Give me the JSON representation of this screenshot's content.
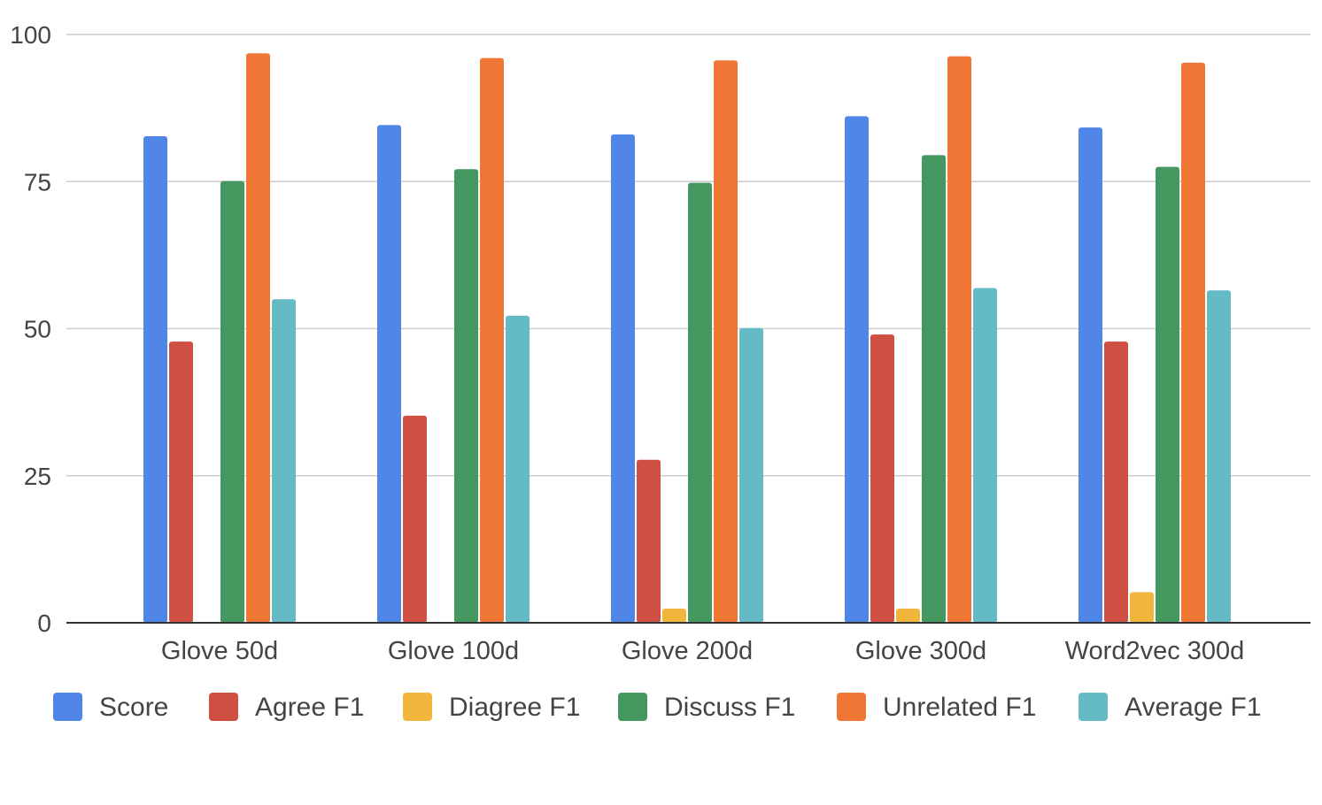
{
  "chart_data": {
    "type": "bar",
    "title": "",
    "xlabel": "",
    "ylabel": "",
    "ylim": [
      0,
      100
    ],
    "yticks": [
      0,
      25,
      50,
      75,
      100
    ],
    "yticks_labels": [
      "0",
      "25",
      "50",
      "75",
      "100"
    ],
    "grid": true,
    "legend_position": "bottom",
    "categories": [
      "Glove 50d",
      "Glove 100d",
      "Glove 200d",
      "Glove 300d",
      "Word2vec 300d"
    ],
    "series": [
      {
        "name": "Score",
        "color": "#4f86e8",
        "values": [
          82.7,
          84.6,
          83.0,
          86.1,
          84.2
        ]
      },
      {
        "name": "Agree F1",
        "color": "#cf4f42",
        "values": [
          47.8,
          35.2,
          27.7,
          49.0,
          47.8
        ]
      },
      {
        "name": "Diagree F1",
        "color": "#f0b73c",
        "values": [
          0,
          0,
          2.4,
          2.4,
          5.2
        ]
      },
      {
        "name": "Discuss F1",
        "color": "#44975f",
        "values": [
          75.1,
          77.1,
          74.8,
          79.5,
          77.5
        ]
      },
      {
        "name": "Unrelated F1",
        "color": "#ef7634",
        "values": [
          96.8,
          96.0,
          95.6,
          96.3,
          95.2
        ]
      },
      {
        "name": "Average F1",
        "color": "#65bbc5",
        "values": [
          55.0,
          52.2,
          50.1,
          56.9,
          56.5
        ]
      }
    ]
  }
}
